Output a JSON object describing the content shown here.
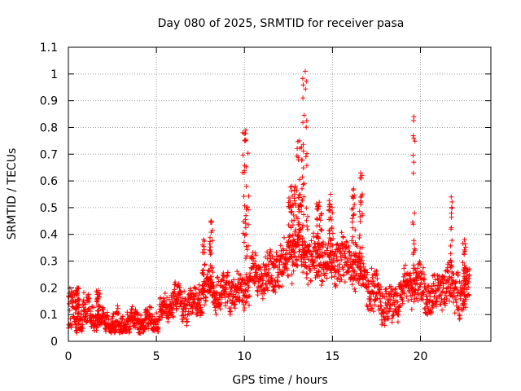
{
  "chart_data": {
    "type": "scatter",
    "title": "Day 080 of 2025, SRMTID for receiver pasa",
    "xlabel": "GPS time / hours",
    "ylabel": "SRMTID / TECUs",
    "xlim": [
      0,
      24
    ],
    "ylim": [
      0,
      1.1
    ],
    "xticks": [
      0,
      5,
      10,
      15,
      20
    ],
    "yticks": [
      0,
      0.1,
      0.2,
      0.3,
      0.4,
      0.5,
      0.6,
      0.7,
      0.8,
      0.9,
      1,
      1.1
    ],
    "ytick_labels": [
      "0",
      "0.1",
      "0.2",
      "0.3",
      "0.4",
      "0.5",
      "0.6",
      "0.7",
      "0.8",
      "0.9",
      "1",
      "1.1"
    ],
    "grid": true,
    "marker": "+",
    "color": "#ff0000",
    "series": [
      {
        "name": "SRMTID",
        "trend": [
          [
            0.0,
            0.1
          ],
          [
            0.5,
            0.1
          ],
          [
            1.0,
            0.11
          ],
          [
            1.5,
            0.09
          ],
          [
            2.0,
            0.07
          ],
          [
            2.5,
            0.065
          ],
          [
            3.0,
            0.06
          ],
          [
            3.5,
            0.07
          ],
          [
            4.0,
            0.08
          ],
          [
            4.5,
            0.07
          ],
          [
            5.0,
            0.08
          ],
          [
            5.5,
            0.12
          ],
          [
            6.0,
            0.16
          ],
          [
            6.5,
            0.14
          ],
          [
            7.0,
            0.13
          ],
          [
            7.5,
            0.16
          ],
          [
            8.0,
            0.2
          ],
          [
            8.5,
            0.18
          ],
          [
            9.0,
            0.19
          ],
          [
            9.5,
            0.18
          ],
          [
            10.0,
            0.2
          ],
          [
            10.5,
            0.25
          ],
          [
            11.0,
            0.24
          ],
          [
            11.5,
            0.26
          ],
          [
            12.0,
            0.28
          ],
          [
            12.5,
            0.32
          ],
          [
            13.0,
            0.36
          ],
          [
            13.5,
            0.32
          ],
          [
            14.0,
            0.3
          ],
          [
            14.5,
            0.32
          ],
          [
            15.0,
            0.3
          ],
          [
            15.5,
            0.31
          ],
          [
            16.0,
            0.3
          ],
          [
            16.5,
            0.27
          ],
          [
            17.0,
            0.2
          ],
          [
            17.5,
            0.17
          ],
          [
            18.0,
            0.13
          ],
          [
            18.5,
            0.14
          ],
          [
            19.0,
            0.19
          ],
          [
            19.5,
            0.22
          ],
          [
            20.0,
            0.21
          ],
          [
            20.5,
            0.16
          ],
          [
            21.0,
            0.17
          ],
          [
            21.5,
            0.22
          ],
          [
            22.0,
            0.19
          ],
          [
            22.5,
            0.18
          ],
          [
            22.8,
            0.2
          ]
        ],
        "spread": [
          [
            0.0,
            0.09
          ],
          [
            2.0,
            0.04
          ],
          [
            5.0,
            0.05
          ],
          [
            7.0,
            0.06
          ],
          [
            9.0,
            0.07
          ],
          [
            12.0,
            0.09
          ],
          [
            15.0,
            0.1
          ],
          [
            17.0,
            0.09
          ],
          [
            19.0,
            0.07
          ],
          [
            22.8,
            0.09
          ]
        ],
        "spikes": [
          {
            "x_start": 9.9,
            "x_end": 10.25,
            "peak": 0.79
          },
          {
            "x_start": 8.0,
            "x_end": 8.2,
            "peak": 0.45
          },
          {
            "x_start": 7.6,
            "x_end": 7.75,
            "peak": 0.38
          },
          {
            "x_start": 12.5,
            "x_end": 12.9,
            "peak": 0.58
          },
          {
            "x_start": 13.3,
            "x_end": 13.6,
            "peak": 1.01
          },
          {
            "x_start": 12.95,
            "x_end": 13.3,
            "peak": 0.75
          },
          {
            "x_start": 14.1,
            "x_end": 14.4,
            "peak": 0.52
          },
          {
            "x_start": 14.8,
            "x_end": 15.0,
            "peak": 0.55
          },
          {
            "x_start": 16.1,
            "x_end": 16.3,
            "peak": 0.57
          },
          {
            "x_start": 16.5,
            "x_end": 16.7,
            "peak": 0.63
          },
          {
            "x_start": 19.55,
            "x_end": 19.7,
            "peak": 0.84
          },
          {
            "x_start": 21.7,
            "x_end": 21.8,
            "peak": 0.54
          },
          {
            "x_start": 22.4,
            "x_end": 22.6,
            "peak": 0.38
          },
          {
            "x_start": 0.4,
            "x_end": 0.6,
            "peak": 0.2
          },
          {
            "x_start": 1.6,
            "x_end": 1.8,
            "peak": 0.19
          }
        ]
      }
    ]
  }
}
